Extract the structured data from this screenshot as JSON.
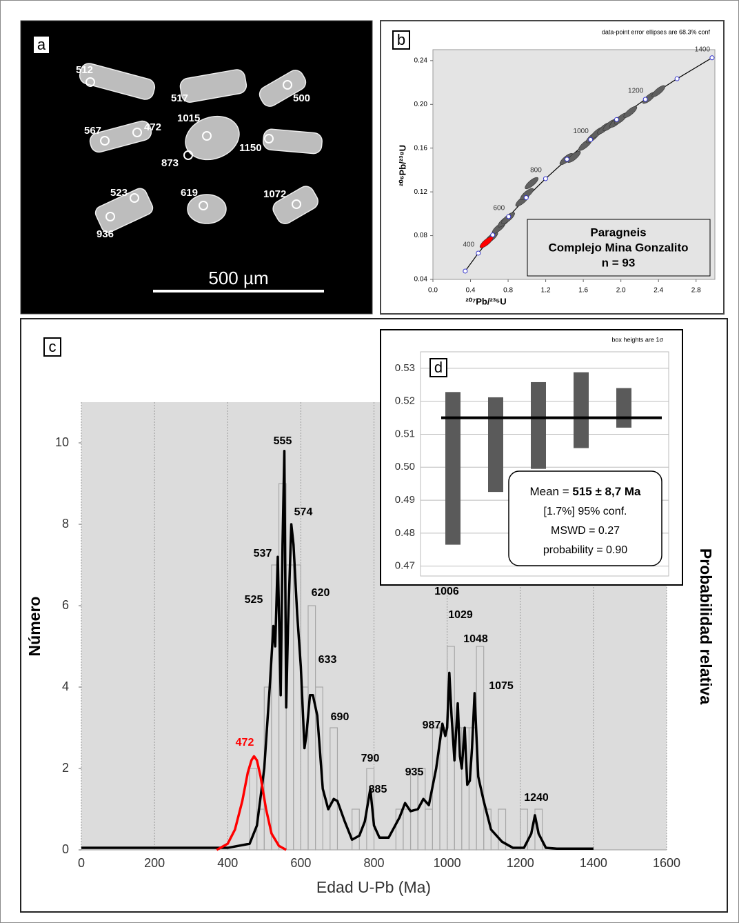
{
  "image_panel": {
    "panel_label": "a",
    "grain_labels": [
      "512",
      "517",
      "500",
      "567",
      "472",
      "1015",
      "1150",
      "873",
      "523",
      "619",
      "1072",
      "936"
    ],
    "scale_bar": "500 µm"
  },
  "chart_data": [
    {
      "type": "concordia",
      "panel_label": "b",
      "note": "data-point error ellipses are 68.3% conf",
      "xlabel": "²⁰⁷Pb/²³⁵U",
      "ylabel": "²⁰⁶Pb/²³⁸U",
      "legend_lines": [
        "Paragneis",
        "Complejo Mina Gonzalito",
        "n = 93"
      ],
      "xlim": [
        0,
        3.0
      ],
      "ylim": [
        0.04,
        0.25
      ],
      "xticks": [
        {
          "value": 0,
          "label": "0.0"
        },
        0.4,
        0.8,
        1.2,
        1.6,
        {
          "value": 2,
          "label": "2.0"
        },
        2.4,
        2.8
      ],
      "yticks": [
        0.04,
        0.08,
        0.12,
        0.16,
        {
          "value": 0.2,
          "label": "0.20"
        },
        0.24
      ],
      "concordia": {
        "color": "#000000",
        "x": [
          0.3437,
          0.4828,
          0.6362,
          0.8056,
          0.9925,
          1.1987,
          1.4264,
          1.6774,
          1.9546,
          2.2603,
          2.5976,
          2.97
        ],
        "y": [
          0.0476,
          0.064,
          0.0806,
          0.0974,
          0.1147,
          0.1321,
          0.1498,
          0.1678,
          0.1861,
          0.2046,
          0.2234,
          0.2426
        ]
      },
      "age_labels": [
        "400",
        "600",
        "800",
        "1000",
        "1200",
        "1400"
      ],
      "ellipses": {
        "color": "#606060",
        "x": [
          0.62,
          0.7,
          0.76,
          0.8,
          0.95,
          1.0,
          1.05,
          1.42,
          1.5,
          1.62,
          1.7,
          1.75,
          1.82,
          1.88,
          1.95,
          2.0,
          2.1,
          2.3,
          2.4
        ],
        "y": [
          0.078,
          0.087,
          0.093,
          0.096,
          0.112,
          0.118,
          0.128,
          0.15,
          0.152,
          0.163,
          0.17,
          0.174,
          0.178,
          0.181,
          0.184,
          0.187,
          0.193,
          0.206,
          0.212
        ]
      },
      "highlight": {
        "color": "#ff0000",
        "x": [
          0.57
        ],
        "y": [
          0.074
        ]
      }
    },
    {
      "type": "histogram",
      "panel_label": "c",
      "xlabel": "Edad U-Pb (Ma)",
      "ylabel": "Número",
      "y2label": "Probabilidad relativa",
      "xlim": [
        0,
        1600
      ],
      "ylim": [
        0,
        11
      ],
      "xticks": [
        0,
        200,
        400,
        600,
        800,
        1000,
        1200,
        1400,
        1600
      ],
      "yticks": [
        0,
        2,
        4,
        6,
        8,
        10
      ],
      "grid": "x",
      "bins": [
        460,
        480,
        500,
        520,
        540,
        560,
        580,
        600,
        620,
        640,
        660,
        680,
        700,
        720,
        740,
        760,
        780,
        800,
        820,
        840,
        860,
        880,
        900,
        920,
        940,
        960,
        980,
        1000,
        1020,
        1040,
        1060,
        1080,
        1100,
        1120,
        1140,
        1160,
        1180,
        1200,
        1220,
        1240,
        1260
      ],
      "counts": [
        2,
        1,
        4,
        7,
        9,
        7,
        7,
        4,
        6,
        4,
        0,
        3,
        0,
        0,
        1,
        0,
        2,
        0,
        0,
        0,
        1,
        1,
        2,
        2,
        1,
        3,
        3,
        5,
        3,
        3,
        3,
        5,
        1,
        0,
        1,
        0,
        0,
        1,
        0,
        1
      ],
      "bar_color": "#a8a8a8",
      "curves": [
        {
          "color": "#000000",
          "x": [
            0,
            400,
            460,
            480,
            500,
            515,
            525,
            530,
            537,
            545,
            550,
            555,
            560,
            565,
            574,
            580,
            590,
            600,
            610,
            615,
            625,
            633,
            645,
            660,
            675,
            690,
            700,
            720,
            740,
            760,
            775,
            790,
            800,
            815,
            840,
            870,
            885,
            900,
            920,
            935,
            950,
            970,
            987,
            995,
            1000,
            1006,
            1012,
            1020,
            1029,
            1035,
            1040,
            1048,
            1055,
            1062,
            1068,
            1075,
            1085,
            1100,
            1120,
            1150,
            1180,
            1210,
            1230,
            1240,
            1250,
            1270,
            1300,
            1400
          ],
          "y": [
            0.05,
            0.05,
            0.15,
            0.6,
            2.0,
            4.0,
            5.5,
            5.0,
            7.2,
            3.8,
            7.5,
            9.8,
            3.5,
            5.5,
            8.0,
            7.5,
            5.8,
            4.5,
            2.5,
            2.8,
            3.8,
            3.8,
            3.3,
            1.5,
            1.0,
            1.25,
            1.2,
            0.7,
            0.25,
            0.35,
            0.7,
            1.5,
            0.6,
            0.3,
            0.3,
            0.8,
            1.15,
            0.95,
            1.0,
            1.25,
            1.1,
            2.0,
            3.1,
            2.8,
            3.0,
            4.35,
            3.3,
            2.2,
            3.6,
            2.3,
            2.0,
            3.0,
            1.6,
            1.7,
            2.5,
            3.85,
            1.8,
            1.2,
            0.5,
            0.2,
            0.05,
            0.05,
            0.4,
            0.85,
            0.4,
            0.05,
            0.03,
            0.03
          ]
        },
        {
          "color": "#ff0000",
          "x": [
            370,
            400,
            420,
            440,
            455,
            465,
            472,
            480,
            490,
            505,
            520,
            540,
            560
          ],
          "y": [
            0,
            0.15,
            0.5,
            1.2,
            1.9,
            2.2,
            2.3,
            2.2,
            1.8,
            1.0,
            0.4,
            0.1,
            0
          ]
        }
      ],
      "peak_labels": [
        {
          "text": "472",
          "color": "#ff0000"
        },
        {
          "text": "525",
          "color": "#000000"
        },
        {
          "text": "537",
          "color": "#000000"
        },
        {
          "text": "555",
          "color": "#000000"
        },
        {
          "text": "574",
          "color": "#000000"
        },
        {
          "text": "620",
          "color": "#000000"
        },
        {
          "text": "633",
          "color": "#000000"
        },
        {
          "text": "690",
          "color": "#000000"
        },
        {
          "text": "790",
          "color": "#000000"
        },
        {
          "text": "885",
          "color": "#000000"
        },
        {
          "text": "935",
          "color": "#000000"
        },
        {
          "text": "987",
          "color": "#000000"
        },
        {
          "text": "1006",
          "color": "#000000"
        },
        {
          "text": "1029",
          "color": "#000000"
        },
        {
          "text": "1048",
          "color": "#000000"
        },
        {
          "text": "1075",
          "color": "#000000"
        },
        {
          "text": "1240",
          "color": "#000000"
        }
      ]
    },
    {
      "type": "box",
      "panel_label": "d",
      "note": "box heights are 1σ",
      "ylim": [
        0.467,
        0.535
      ],
      "yticks": [
        0.47,
        0.48,
        0.49,
        {
          "value": 0.5,
          "label": "0.50"
        },
        0.51,
        0.52,
        0.53
      ],
      "values": [
        0.49965,
        0.50685,
        0.51265,
        0.5173,
        0.518
      ],
      "errors": [
        0.02315,
        0.01435,
        0.01315,
        0.0115,
        0.006
      ],
      "color": "#5a5a5a",
      "mean": 0.515,
      "summary": {
        "mean_prefix": "Mean = ",
        "mean_text": "515 ± 8,7 Ma",
        "conf": "[1.7%] 95% conf.",
        "mswd": "MSWD = 0.27",
        "probability": "probability = 0.90"
      }
    }
  ]
}
